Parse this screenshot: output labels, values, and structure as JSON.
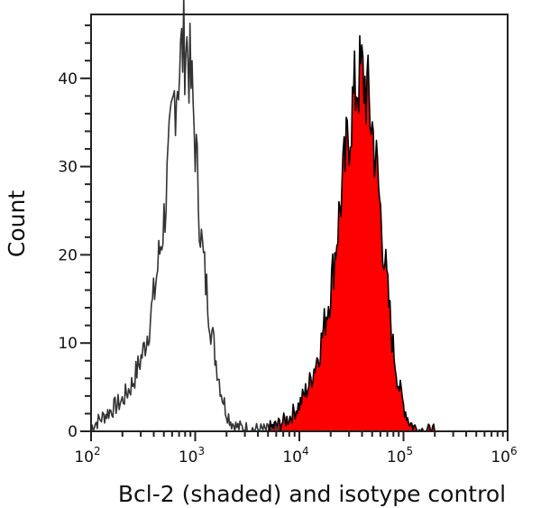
{
  "chart_data": {
    "type": "area",
    "title": "",
    "xlabel": "Bcl-2 (shaded) and isotype control",
    "ylabel": "Count",
    "x_scale": "log",
    "xlim": [
      100,
      1000000
    ],
    "ylim": [
      0,
      47
    ],
    "x_ticks": [
      {
        "value": 100,
        "base": "10",
        "exp": "2"
      },
      {
        "value": 1000,
        "base": "10",
        "exp": "3"
      },
      {
        "value": 10000,
        "base": "10",
        "exp": "4"
      },
      {
        "value": 100000,
        "base": "10",
        "exp": "5"
      },
      {
        "value": 1000000,
        "base": "10",
        "exp": "6"
      }
    ],
    "y_ticks": [
      0,
      10,
      20,
      30,
      40
    ],
    "y_minor_step": 2,
    "grid": false,
    "legend": null,
    "series": [
      {
        "name": "Isotype control",
        "style": "line",
        "color": "#333333",
        "log10_x": [
          2.0,
          2.1,
          2.2,
          2.3,
          2.4,
          2.5,
          2.55,
          2.6,
          2.65,
          2.7,
          2.75,
          2.8,
          2.85,
          2.88,
          2.91,
          2.94,
          2.97,
          3.0,
          3.03,
          3.06,
          3.1,
          3.15,
          3.2,
          3.25,
          3.3,
          3.35,
          3.4,
          3.5,
          3.6,
          3.7,
          3.8
        ],
        "values": [
          0.5,
          1.5,
          2.5,
          3.5,
          5.5,
          9.0,
          11.5,
          15.0,
          19.5,
          24.0,
          31.0,
          38.0,
          41.5,
          43.5,
          44.5,
          42.0,
          38.0,
          33.0,
          27.0,
          21.5,
          17.0,
          12.0,
          8.0,
          4.5,
          2.2,
          1.0,
          0.5,
          0.3,
          0.2,
          0.1,
          0.1
        ]
      },
      {
        "name": "Bcl-2",
        "style": "filled",
        "color": "#ff0000",
        "edge_color": "#000000",
        "log10_x": [
          3.7,
          3.8,
          3.9,
          4.0,
          4.1,
          4.2,
          4.3,
          4.35,
          4.4,
          4.45,
          4.5,
          4.55,
          4.6,
          4.65,
          4.7,
          4.75,
          4.8,
          4.85,
          4.9,
          4.95,
          5.0,
          5.05,
          5.1,
          5.15,
          5.2,
          5.25,
          5.3
        ],
        "values": [
          0.3,
          0.8,
          1.5,
          3.0,
          5.5,
          9.5,
          16.0,
          21.0,
          26.5,
          31.5,
          36.0,
          39.5,
          40.5,
          38.5,
          34.5,
          29.0,
          22.0,
          15.5,
          9.5,
          5.5,
          3.0,
          1.2,
          0.5,
          0.2,
          0.1,
          0.05,
          0.0
        ]
      }
    ],
    "peaks": {
      "isotype_control": {
        "x_approx": 800,
        "count_approx": 45
      },
      "bcl2": {
        "x_approx": 40000,
        "count_approx": 41
      }
    }
  }
}
